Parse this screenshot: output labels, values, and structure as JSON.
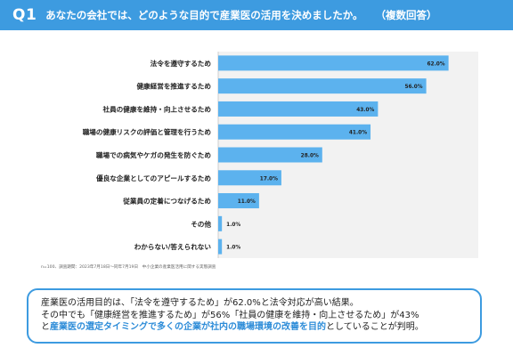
{
  "header": {
    "q_number": "Q1",
    "question": "あなたの会社では、どのような目的で産業医の活用を決めましたか。",
    "note": "（複数回答）"
  },
  "colors": {
    "header_bg": "#3d9be0",
    "bar": "#5cb2ee",
    "plot_bg": "#f2f2f2",
    "highlight": "#2d8cd8"
  },
  "chart_data": {
    "type": "bar",
    "orientation": "horizontal",
    "categories": [
      "法令を遵守するため",
      "健康経営を推進するため",
      "社員の健康を維持・向上させるため",
      "職場の健康リスクの評価と管理を行うため",
      "職場での病気やケガの発生を防ぐため",
      "優良な企業としてのアピールするため",
      "従業員の定着につなげるため",
      "その他",
      "わからない/答えられない"
    ],
    "values": [
      62.0,
      56.0,
      43.0,
      41.0,
      28.0,
      17.0,
      11.0,
      1.0,
      1.0
    ],
    "value_labels": [
      "62.0%",
      "56.0%",
      "43.0%",
      "41.0%",
      "28.0%",
      "17.0%",
      "11.0%",
      "1.0%",
      "1.0%"
    ],
    "xlim": [
      0,
      70
    ],
    "grid": false,
    "legend": "none"
  },
  "footnote": "n=100、調査期間：2023年7月18日〜同年7月19日　中小企業の産業医活用に関する実態調査",
  "summary": {
    "line1": "産業医の活用目的は、「法令を遵守するため」が62.0%と法令対応が高い結果。",
    "line2": "その中でも「健康経営を推進するため」が56%「社員の健康を維持・向上させるため」が43%",
    "line3_prefix": "と",
    "line3_highlight": "産業医の選定タイミングで多くの企業が社内の職場環境の改善を目的",
    "line3_suffix": "としていることが判明。"
  }
}
